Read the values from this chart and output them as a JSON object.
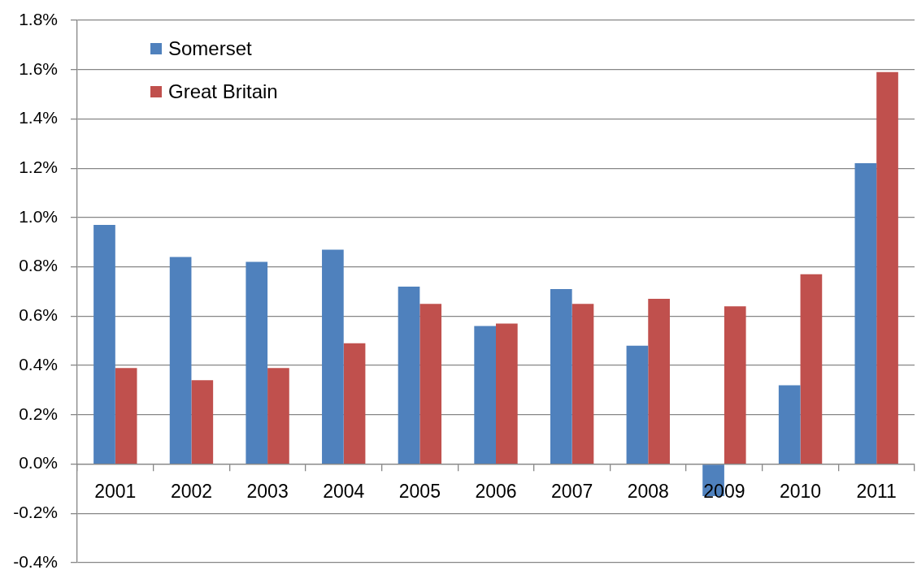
{
  "chart_data": {
    "type": "bar",
    "categories": [
      "2001",
      "2002",
      "2003",
      "2004",
      "2005",
      "2006",
      "2007",
      "2008",
      "2009",
      "2010",
      "2011"
    ],
    "series": [
      {
        "name": "Somerset",
        "color": "#4f81bd",
        "values": [
          0.97,
          0.84,
          0.82,
          0.87,
          0.72,
          0.56,
          0.71,
          0.48,
          -0.13,
          0.32,
          1.22
        ]
      },
      {
        "name": "Great Britain",
        "color": "#c0504d",
        "values": [
          0.39,
          0.34,
          0.39,
          0.49,
          0.65,
          0.57,
          0.65,
          0.67,
          0.64,
          0.77,
          1.59
        ]
      }
    ],
    "ylim": [
      -0.4,
      1.8
    ],
    "yticks": [
      {
        "value": -0.4,
        "label": "-0.4%"
      },
      {
        "value": -0.2,
        "label": "-0.2%"
      },
      {
        "value": 0,
        "label": "0.0%"
      },
      {
        "value": 0.2,
        "label": "0.2%"
      },
      {
        "value": 0.4,
        "label": "0.4%"
      },
      {
        "value": 0.6,
        "label": "0.6%"
      },
      {
        "value": 0.8,
        "label": "0.8%"
      },
      {
        "value": 1.0,
        "label": "1.0%"
      },
      {
        "value": 1.2,
        "label": "1.2%"
      },
      {
        "value": 1.4,
        "label": "1.4%"
      },
      {
        "value": 1.6,
        "label": "1.6%"
      },
      {
        "value": 1.8,
        "label": "1.8%"
      }
    ],
    "grid": "y",
    "legend": "top left"
  }
}
